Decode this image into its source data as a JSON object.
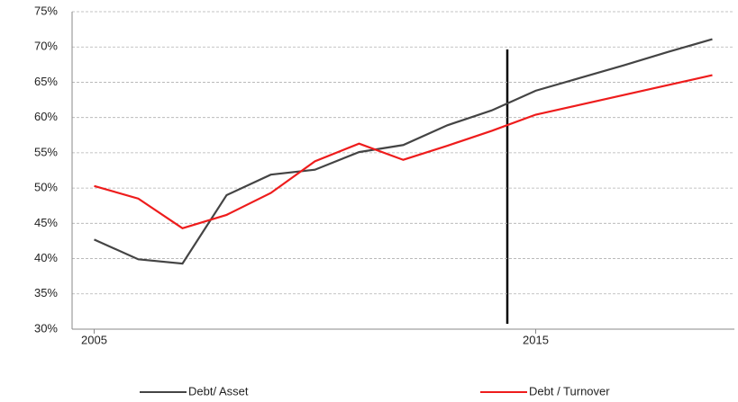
{
  "chart_data": {
    "type": "line",
    "x": [
      2005,
      2006,
      2007,
      2008,
      2009,
      2010,
      2011,
      2012,
      2013,
      2014,
      2015,
      2016,
      2017,
      2018,
      2019
    ],
    "series": [
      {
        "name": "Debt/ Asset",
        "color": "#444444",
        "values": [
          42.7,
          39.9,
          39.3,
          49.0,
          51.9,
          52.6,
          55.1,
          56.1,
          58.9,
          61.0,
          63.8,
          65.6,
          67.4,
          69.3,
          71.1
        ]
      },
      {
        "name": "Debt / Turnover",
        "color": "#ee1c1c",
        "values": [
          50.3,
          48.5,
          44.3,
          46.2,
          49.3,
          53.8,
          56.3,
          54.0,
          56.0,
          58.1,
          60.4,
          61.8,
          63.2,
          64.6,
          66.0
        ]
      }
    ],
    "xlim": [
      2004.5,
      2019.5
    ],
    "xticks": [
      2005,
      2015
    ],
    "ylim": [
      30,
      75
    ],
    "yticks": [
      {
        "value": 30,
        "label": "30%"
      },
      {
        "value": 35,
        "label": "35%"
      },
      {
        "value": 40,
        "label": "40%"
      },
      {
        "value": 45,
        "label": "45%"
      },
      {
        "value": 50,
        "label": "50%"
      },
      {
        "value": 55,
        "label": "55%"
      },
      {
        "value": 60,
        "label": "60%"
      },
      {
        "value": 65,
        "label": "65%"
      },
      {
        "value": 70,
        "label": "70%"
      },
      {
        "value": 75,
        "label": "75%"
      }
    ],
    "grid": true
  }
}
